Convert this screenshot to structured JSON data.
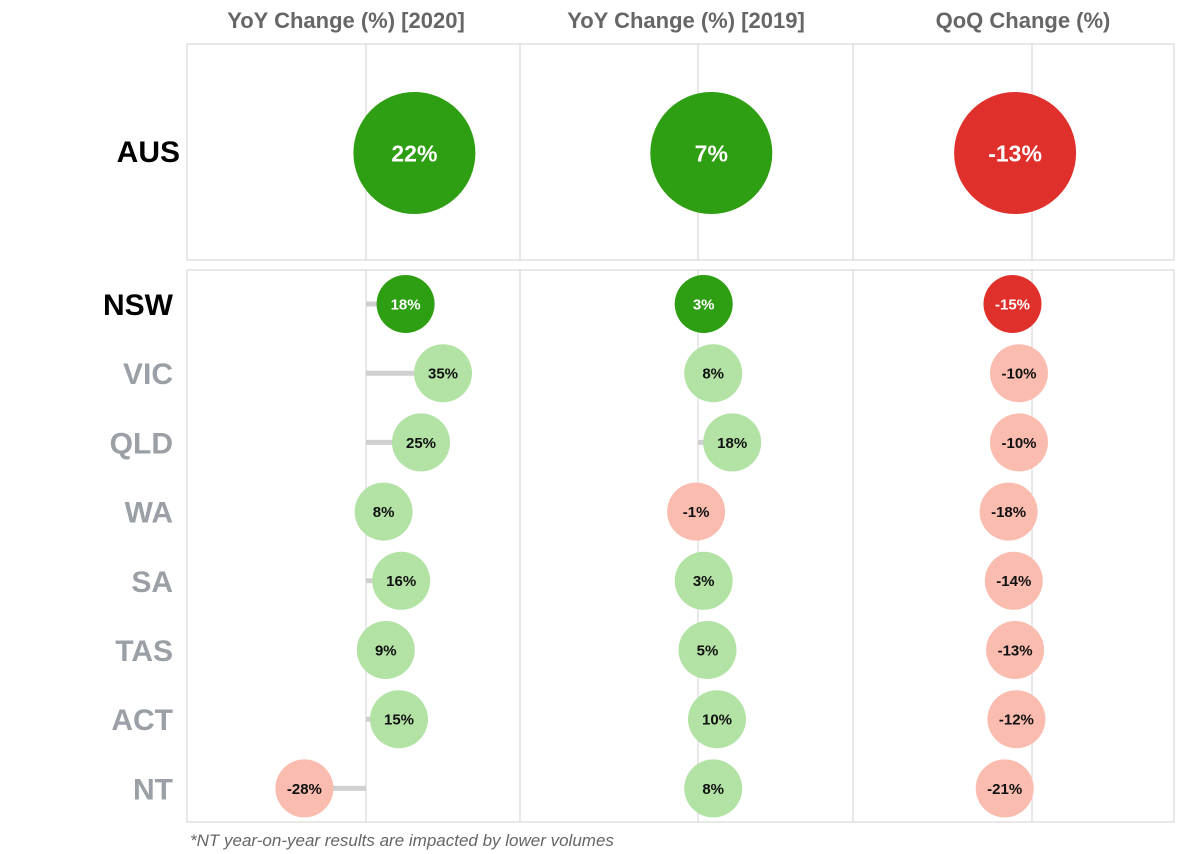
{
  "chart_data": {
    "type": "scatter",
    "columns": [
      {
        "key": "yoy2020",
        "title": "YoY Change (%) [2020]"
      },
      {
        "key": "yoy2019",
        "title": "YoY Change (%) [2019]"
      },
      {
        "key": "qoq",
        "title": "QoQ Change (%)"
      }
    ],
    "total": {
      "region": "AUS",
      "values": {
        "yoy2020": 22,
        "yoy2019": 7,
        "qoq": -13
      },
      "labels": {
        "yoy2020": "22%",
        "yoy2019": "7%",
        "qoq": "-13%"
      }
    },
    "regions": [
      {
        "region": "NSW",
        "highlight": true,
        "values": {
          "yoy2020": 18,
          "yoy2019": 3,
          "qoq": -15
        },
        "labels": {
          "yoy2020": "18%",
          "yoy2019": "3%",
          "qoq": "-15%"
        }
      },
      {
        "region": "VIC",
        "highlight": false,
        "values": {
          "yoy2020": 35,
          "yoy2019": 8,
          "qoq": -10
        },
        "labels": {
          "yoy2020": "35%",
          "yoy2019": "8%",
          "qoq": "-10%"
        }
      },
      {
        "region": "QLD",
        "highlight": false,
        "values": {
          "yoy2020": 25,
          "yoy2019": 18,
          "qoq": -10
        },
        "labels": {
          "yoy2020": "25%",
          "yoy2019": "18%",
          "qoq": "-10%"
        }
      },
      {
        "region": "WA",
        "highlight": false,
        "values": {
          "yoy2020": 8,
          "yoy2019": -1,
          "qoq": -18
        },
        "labels": {
          "yoy2020": "8%",
          "yoy2019": "-1%",
          "qoq": "-18%"
        }
      },
      {
        "region": "SA",
        "highlight": false,
        "values": {
          "yoy2020": 16,
          "yoy2019": 3,
          "qoq": -14
        },
        "labels": {
          "yoy2020": "16%",
          "yoy2019": "3%",
          "qoq": "-14%"
        }
      },
      {
        "region": "TAS",
        "highlight": false,
        "values": {
          "yoy2020": 9,
          "yoy2019": 5,
          "qoq": -13
        },
        "labels": {
          "yoy2020": "9%",
          "yoy2019": "5%",
          "qoq": "-13%"
        }
      },
      {
        "region": "ACT",
        "highlight": false,
        "values": {
          "yoy2020": 15,
          "yoy2019": 10,
          "qoq": -12
        },
        "labels": {
          "yoy2020": "15%",
          "yoy2019": "10%",
          "qoq": "-12%"
        }
      },
      {
        "region": "NT",
        "highlight": false,
        "values": {
          "yoy2020": -28,
          "yoy2019": 8,
          "qoq": -21
        },
        "labels": {
          "yoy2020": "-28%",
          "yoy2019": "8%",
          "qoq": "-21%"
        }
      }
    ],
    "zero_line": 0,
    "grid": false,
    "colors": {
      "positive_strong": "#2e9e12",
      "negative_strong": "#e0302c",
      "positive_light": "#b2e2a4",
      "negative_light": "#fbbcb0",
      "stem": "#d0d0d0",
      "label_highlight": "#000000",
      "label_muted": "#9aa0a6"
    }
  },
  "footnote": "*NT year-on-year results are impacted by lower volumes"
}
